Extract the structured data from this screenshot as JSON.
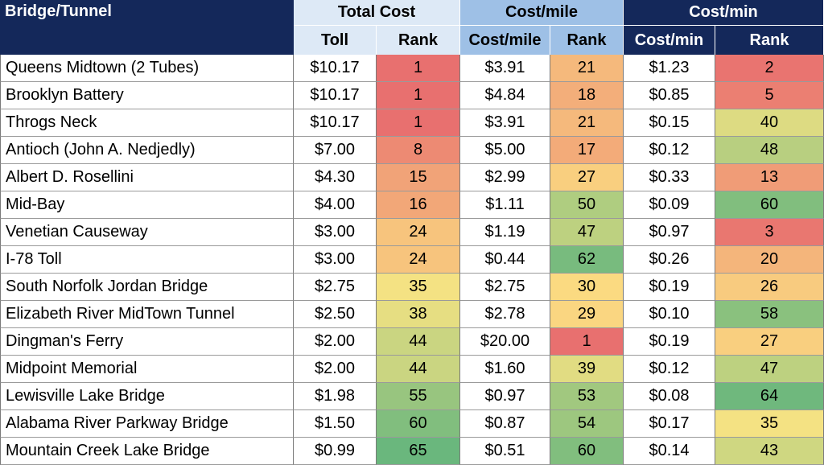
{
  "table": {
    "corner_label": "Bridge/Tunnel",
    "groups": [
      "Total Cost",
      "Cost/mile",
      "Cost/min"
    ],
    "subheaders": [
      "Toll",
      "Rank",
      "Cost/mile",
      "Rank",
      "Cost/min",
      "Rank"
    ],
    "rows": [
      {
        "name": "Queens Midtown (2 Tubes)",
        "toll": "$10.17",
        "toll_rank": "1",
        "cost_mile": "$3.91",
        "mile_rank": "21",
        "cost_min": "$1.23",
        "min_rank": "2"
      },
      {
        "name": "Brooklyn Battery",
        "toll": "$10.17",
        "toll_rank": "1",
        "cost_mile": "$4.84",
        "mile_rank": "18",
        "cost_min": "$0.85",
        "min_rank": "5"
      },
      {
        "name": "Throgs Neck",
        "toll": "$10.17",
        "toll_rank": "1",
        "cost_mile": "$3.91",
        "mile_rank": "21",
        "cost_min": "$0.15",
        "min_rank": "40"
      },
      {
        "name": "Antioch (John A. Nedjedly)",
        "toll": "$7.00",
        "toll_rank": "8",
        "cost_mile": "$5.00",
        "mile_rank": "17",
        "cost_min": "$0.12",
        "min_rank": "48"
      },
      {
        "name": "Albert D. Rosellini",
        "toll": "$4.30",
        "toll_rank": "15",
        "cost_mile": "$2.99",
        "mile_rank": "27",
        "cost_min": "$0.33",
        "min_rank": "13"
      },
      {
        "name": "Mid-Bay",
        "toll": "$4.00",
        "toll_rank": "16",
        "cost_mile": "$1.11",
        "mile_rank": "50",
        "cost_min": "$0.09",
        "min_rank": "60"
      },
      {
        "name": "Venetian Causeway",
        "toll": "$3.00",
        "toll_rank": "24",
        "cost_mile": "$1.19",
        "mile_rank": "47",
        "cost_min": "$0.97",
        "min_rank": "3"
      },
      {
        "name": "I-78 Toll",
        "toll": "$3.00",
        "toll_rank": "24",
        "cost_mile": "$0.44",
        "mile_rank": "62",
        "cost_min": "$0.26",
        "min_rank": "20"
      },
      {
        "name": "South Norfolk Jordan Bridge",
        "toll": "$2.75",
        "toll_rank": "35",
        "cost_mile": "$2.75",
        "mile_rank": "30",
        "cost_min": "$0.19",
        "min_rank": "26"
      },
      {
        "name": "Elizabeth River MidTown Tunnel",
        "toll": "$2.50",
        "toll_rank": "38",
        "cost_mile": "$2.78",
        "mile_rank": "29",
        "cost_min": "$0.10",
        "min_rank": "58"
      },
      {
        "name": "Dingman's Ferry",
        "toll": "$2.00",
        "toll_rank": "44",
        "cost_mile": "$20.00",
        "mile_rank": "1",
        "cost_min": "$0.19",
        "min_rank": "27"
      },
      {
        "name": "Midpoint Memorial",
        "toll": "$2.00",
        "toll_rank": "44",
        "cost_mile": "$1.60",
        "mile_rank": "39",
        "cost_min": "$0.12",
        "min_rank": "47"
      },
      {
        "name": "Lewisville Lake Bridge",
        "toll": "$1.98",
        "toll_rank": "55",
        "cost_mile": "$0.97",
        "mile_rank": "53",
        "cost_min": "$0.08",
        "min_rank": "64"
      },
      {
        "name": "Alabama River Parkway Bridge",
        "toll": "$1.50",
        "toll_rank": "60",
        "cost_mile": "$0.87",
        "mile_rank": "54",
        "cost_min": "$0.17",
        "min_rank": "35"
      },
      {
        "name": "Mountain Creek Lake Bridge",
        "toll": "$0.99",
        "toll_rank": "65",
        "cost_mile": "$0.51",
        "mile_rank": "60",
        "cost_min": "$0.14",
        "min_rank": "43"
      }
    ]
  },
  "colors": {
    "header_dark": "#14285a",
    "header_light": "#dde9f6",
    "header_mid": "#9ec0e6",
    "scale_low": "#e8706f",
    "scale_mid": "#fde583",
    "scale_high": "#6ab77d"
  },
  "rank_scale": {
    "min": 1,
    "max": 65
  }
}
